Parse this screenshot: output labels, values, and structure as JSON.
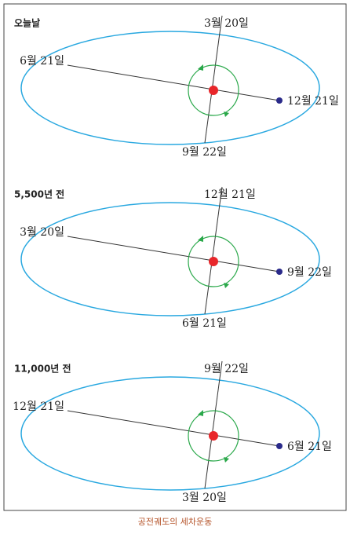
{
  "panels": [
    {
      "title": "오늘날",
      "top": "3월 20일",
      "left": "6월 21일",
      "right": "12월 21일",
      "bottom": "9월 22일"
    },
    {
      "title": "5,500년 전",
      "top": "12월 21일",
      "left": "3월 20일",
      "right": "9월 22일",
      "bottom": "6월 21일"
    },
    {
      "title": "11,000년 전",
      "top": "9월 22일",
      "left": "12월 21일",
      "right": "6월 21일",
      "bottom": "3월 20일"
    }
  ],
  "caption": "공전궤도의 세차운동"
}
